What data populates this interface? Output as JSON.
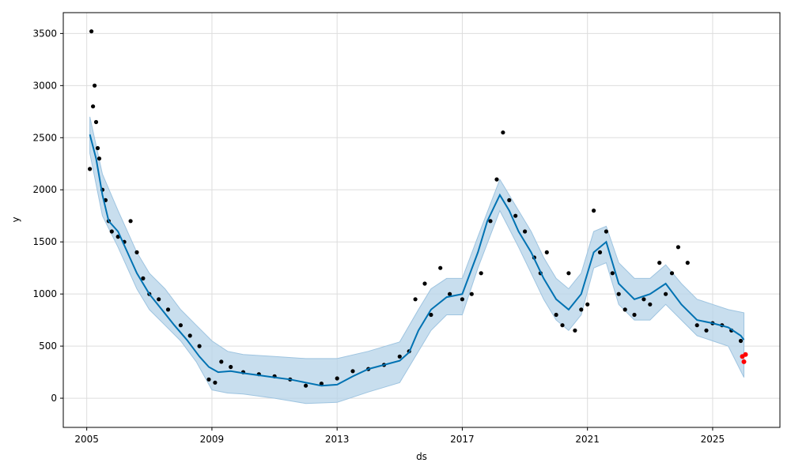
{
  "chart_data": {
    "type": "line",
    "title": "",
    "xlabel": "ds",
    "ylabel": "y",
    "xlim": [
      2004.25,
      2027.15
    ],
    "ylim": [
      -280,
      3700
    ],
    "grid": true,
    "legend": "none",
    "x_ticks": [
      {
        "value": 2005,
        "label": "2005"
      },
      {
        "value": 2009,
        "label": "2009"
      },
      {
        "value": 2013,
        "label": "2013"
      },
      {
        "value": 2017,
        "label": "2017"
      },
      {
        "value": 2021,
        "label": "2021"
      },
      {
        "value": 2025,
        "label": "2025"
      }
    ],
    "y_ticks": [
      {
        "value": 0,
        "label": "0"
      },
      {
        "value": 500,
        "label": "500"
      },
      {
        "value": 1000,
        "label": "1000"
      },
      {
        "value": 1500,
        "label": "1500"
      },
      {
        "value": 2000,
        "label": "2000"
      },
      {
        "value": 2500,
        "label": "2500"
      },
      {
        "value": 3000,
        "label": "3000"
      },
      {
        "value": 3500,
        "label": "3500"
      }
    ],
    "colors": {
      "forecast_line": "#0072B2",
      "uncertainty_band": "#B5D3E8",
      "observed_points": "#000000",
      "test_points": "#FF0000",
      "grid": "#DDDDDD"
    },
    "series": [
      {
        "role": "forecast_yhat",
        "x": [
          2005.1,
          2005.3,
          2005.5,
          2005.7,
          2006.0,
          2006.3,
          2006.6,
          2007.0,
          2007.4,
          2007.8,
          2008.2,
          2008.6,
          2008.9,
          2009.2,
          2009.6,
          2010.0,
          2010.5,
          2011.0,
          2011.5,
          2012.0,
          2012.5,
          2013.0,
          2013.5,
          2014.0,
          2014.5,
          2015.0,
          2015.3,
          2015.6,
          2016.0,
          2016.5,
          2017.0,
          2017.5,
          2017.8,
          2018.2,
          2018.5,
          2018.8,
          2019.2,
          2019.6,
          2020.0,
          2020.4,
          2020.8,
          2021.2,
          2021.6,
          2022.0,
          2022.5,
          2023.0,
          2023.5,
          2024.0,
          2024.5,
          2025.0,
          2025.5,
          2025.9,
          2026.0
        ],
        "y": [
          2530,
          2300,
          1950,
          1700,
          1600,
          1400,
          1200,
          1000,
          850,
          700,
          560,
          400,
          300,
          250,
          260,
          240,
          220,
          200,
          180,
          150,
          120,
          130,
          210,
          280,
          320,
          360,
          440,
          650,
          850,
          970,
          1000,
          1400,
          1700,
          1950,
          1800,
          1600,
          1400,
          1150,
          950,
          850,
          1000,
          1400,
          1500,
          1100,
          950,
          1000,
          1100,
          900,
          750,
          720,
          680,
          600,
          560
        ]
      },
      {
        "role": "uncertainty_upper",
        "x": [
          2005.1,
          2005.5,
          2006.0,
          2006.6,
          2007.0,
          2007.5,
          2008.0,
          2008.5,
          2009.0,
          2009.5,
          2010.0,
          2011.0,
          2012.0,
          2013.0,
          2014.0,
          2015.0,
          2015.6,
          2016.0,
          2016.5,
          2017.0,
          2017.5,
          2018.2,
          2018.8,
          2019.2,
          2019.6,
          2020.0,
          2020.4,
          2020.8,
          2021.2,
          2021.6,
          2022.0,
          2022.5,
          2023.0,
          2023.5,
          2024.0,
          2024.5,
          2025.0,
          2025.5,
          2026.0
        ],
        "y": [
          2700,
          2150,
          1800,
          1400,
          1200,
          1050,
          850,
          700,
          550,
          450,
          420,
          400,
          380,
          380,
          450,
          540,
          850,
          1050,
          1150,
          1150,
          1550,
          2100,
          1800,
          1600,
          1350,
          1150,
          1050,
          1200,
          1600,
          1650,
          1300,
          1150,
          1150,
          1280,
          1100,
          950,
          900,
          850,
          820
        ]
      },
      {
        "role": "uncertainty_lower",
        "x": [
          2005.1,
          2005.5,
          2006.0,
          2006.6,
          2007.0,
          2007.5,
          2008.0,
          2008.5,
          2009.0,
          2009.5,
          2010.0,
          2011.0,
          2012.0,
          2013.0,
          2014.0,
          2015.0,
          2015.6,
          2016.0,
          2016.5,
          2017.0,
          2017.5,
          2018.2,
          2018.8,
          2019.2,
          2019.6,
          2020.0,
          2020.4,
          2020.8,
          2021.2,
          2021.6,
          2022.0,
          2022.5,
          2023.0,
          2023.5,
          2024.0,
          2024.5,
          2025.0,
          2025.5,
          2026.0
        ],
        "y": [
          2350,
          1750,
          1450,
          1050,
          850,
          700,
          550,
          350,
          80,
          50,
          40,
          0,
          -50,
          -40,
          60,
          150,
          450,
          650,
          800,
          800,
          1250,
          1800,
          1450,
          1200,
          950,
          750,
          650,
          800,
          1250,
          1300,
          900,
          750,
          750,
          900,
          750,
          600,
          550,
          500,
          200
        ]
      },
      {
        "role": "observed",
        "x": [
          2005.1,
          2005.15,
          2005.2,
          2005.25,
          2005.3,
          2005.35,
          2005.4,
          2005.5,
          2005.6,
          2005.7,
          2005.8,
          2006.0,
          2006.2,
          2006.4,
          2006.6,
          2006.8,
          2007.0,
          2007.3,
          2007.6,
          2008.0,
          2008.3,
          2008.6,
          2008.9,
          2009.1,
          2009.3,
          2009.6,
          2010.0,
          2010.5,
          2011.0,
          2011.5,
          2012.0,
          2012.5,
          2013.0,
          2013.5,
          2014.0,
          2014.5,
          2015.0,
          2015.3,
          2015.5,
          2015.8,
          2016.0,
          2016.3,
          2016.6,
          2017.0,
          2017.3,
          2017.6,
          2017.9,
          2018.1,
          2018.3,
          2018.5,
          2018.7,
          2019.0,
          2019.3,
          2019.5,
          2019.7,
          2020.0,
          2020.2,
          2020.4,
          2020.6,
          2020.8,
          2021.0,
          2021.2,
          2021.4,
          2021.6,
          2021.8,
          2022.0,
          2022.2,
          2022.5,
          2022.8,
          2023.0,
          2023.3,
          2023.5,
          2023.7,
          2023.9,
          2024.2,
          2024.5,
          2024.8,
          2025.0,
          2025.3,
          2025.6,
          2025.9
        ],
        "y": [
          2200,
          3520,
          2800,
          3000,
          2650,
          2400,
          2300,
          2000,
          1900,
          1700,
          1600,
          1550,
          1500,
          1700,
          1400,
          1150,
          1000,
          950,
          850,
          700,
          600,
          500,
          180,
          150,
          350,
          300,
          250,
          230,
          210,
          180,
          120,
          140,
          190,
          260,
          280,
          320,
          400,
          450,
          950,
          1100,
          800,
          1250,
          1000,
          950,
          1000,
          1200,
          1700,
          2100,
          2550,
          1900,
          1750,
          1600,
          1350,
          1200,
          1400,
          800,
          700,
          1200,
          650,
          850,
          900,
          1800,
          1400,
          1600,
          1200,
          1000,
          850,
          800,
          950,
          900,
          1300,
          1000,
          1200,
          1450,
          1300,
          700,
          650,
          720,
          700,
          650,
          550
        ]
      },
      {
        "role": "test_points",
        "x": [
          2025.95,
          2026.0,
          2026.05
        ],
        "y": [
          400,
          350,
          420
        ]
      }
    ]
  }
}
